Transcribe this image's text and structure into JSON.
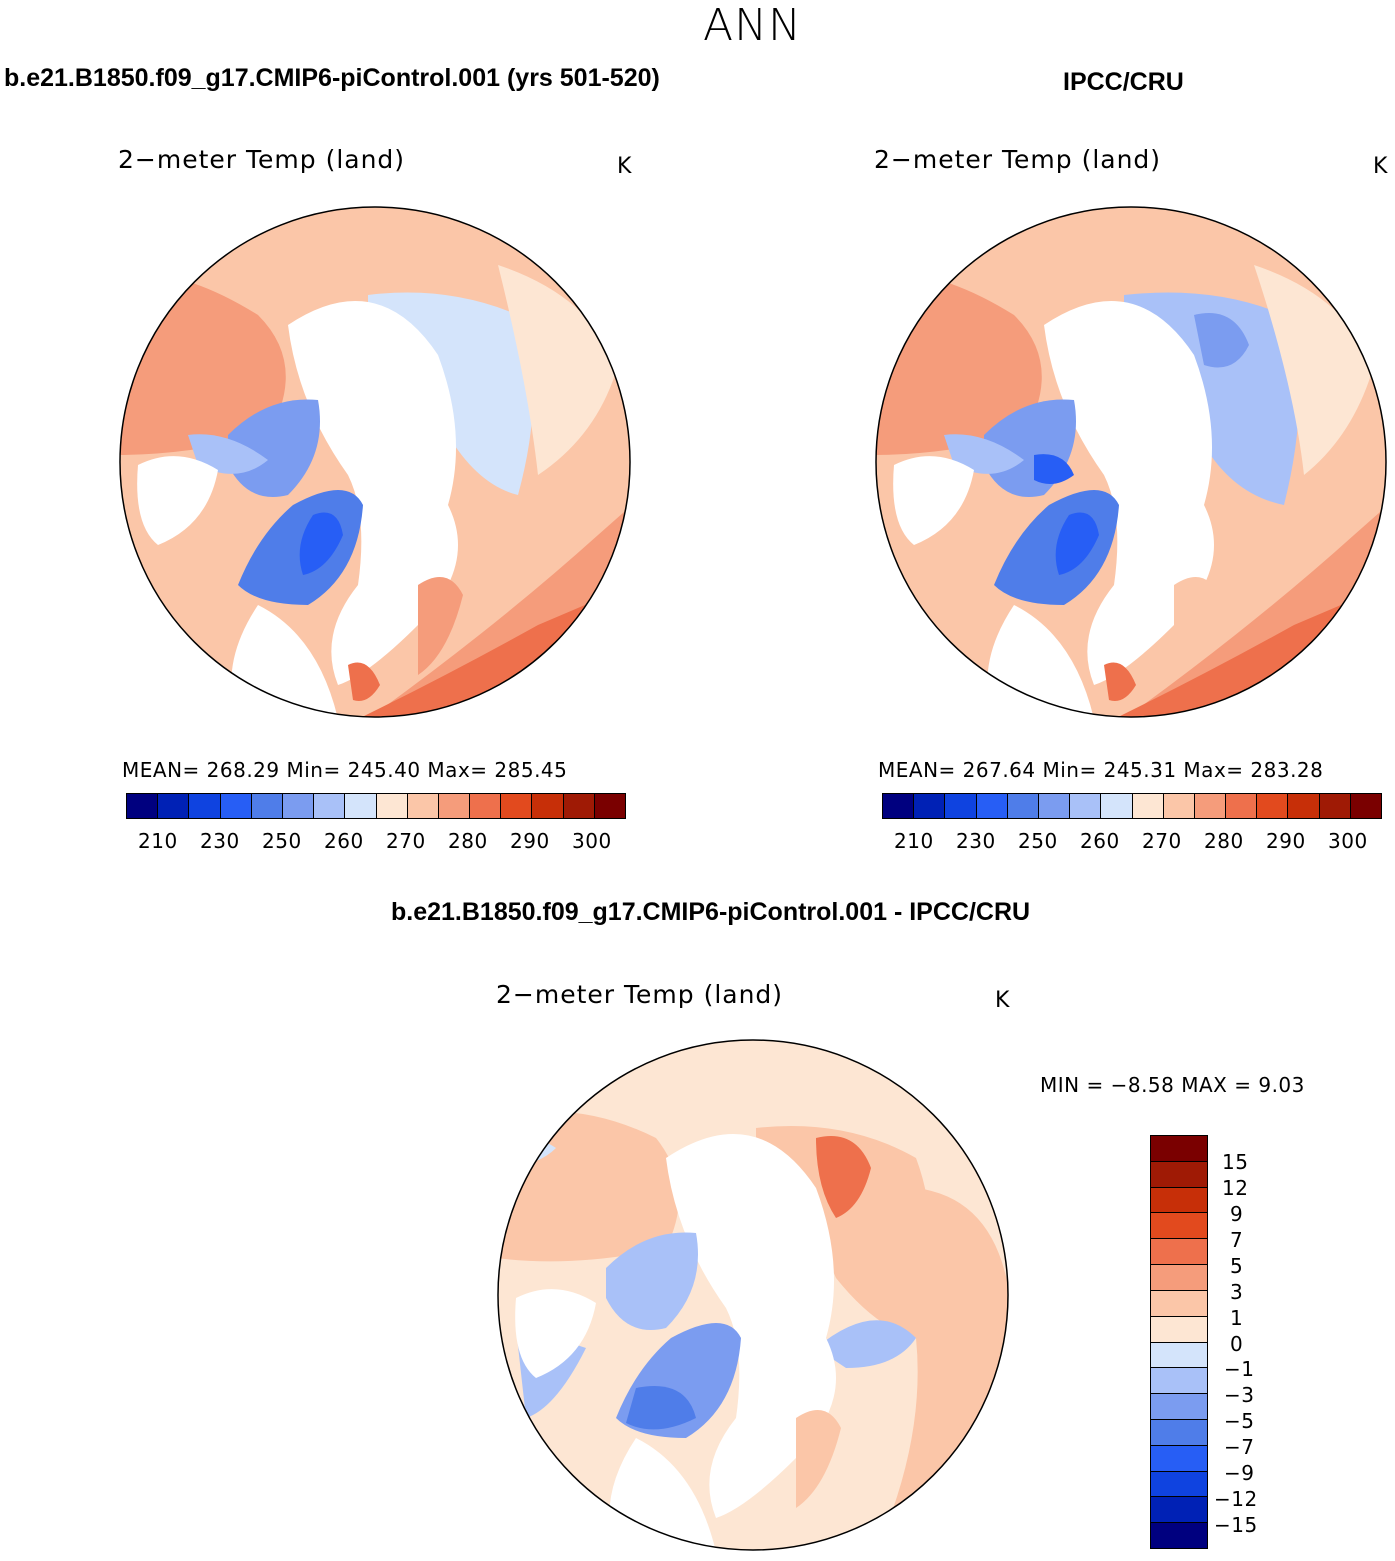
{
  "header": {
    "title": "ANN"
  },
  "panels": {
    "model": {
      "case_title": "b.e21.B1850.f09_g17.CMIP6-piControl.001 (yrs 501-520)",
      "var_title": "2−meter Temp (land)",
      "units": "K",
      "stats": "MEAN= 268.29   Min= 245.40   Max= 285.45",
      "ticks": [
        "210",
        "230",
        "250",
        "260",
        "270",
        "280",
        "290",
        "300"
      ]
    },
    "obs": {
      "case_title": "IPCC/CRU",
      "var_title": "2−meter Temp (land)",
      "units": "K",
      "stats": "MEAN= 267.64   Min= 245.31   Max= 283.28",
      "ticks": [
        "210",
        "230",
        "250",
        "260",
        "270",
        "280",
        "290",
        "300"
      ]
    },
    "diff": {
      "case_title": "b.e21.B1850.f09_g17.CMIP6-piControl.001 - IPCC/CRU",
      "var_title": "2−meter Temp (land)",
      "units": "K",
      "stats": "MIN =   −8.58  MAX =    9.03",
      "ticks": [
        "15",
        "12",
        "9",
        "7",
        "5",
        "3",
        "1",
        "0",
        "−1",
        "−3",
        "−5",
        "−7",
        "−9",
        "−12",
        "−15"
      ]
    }
  },
  "colorscales": {
    "abs": [
      "#00007f",
      "#0021b5",
      "#0f43e0",
      "#275ef5",
      "#4f7de9",
      "#7b9cf0",
      "#a9c1f8",
      "#d4e4fb",
      "#fde6d3",
      "#fbc6a8",
      "#f59c7b",
      "#ee704c",
      "#e24a1e",
      "#c72f08",
      "#9f1a05",
      "#7a0000"
    ],
    "diff": [
      "#7a0000",
      "#9f1a05",
      "#c72f08",
      "#e24a1e",
      "#ee704c",
      "#f59c7b",
      "#fbc6a8",
      "#fde6d3",
      "#d4e4fb",
      "#a9c1f8",
      "#7b9cf0",
      "#4f7de9",
      "#275ef5",
      "#0f43e0",
      "#0021b5",
      "#00007f"
    ]
  }
}
